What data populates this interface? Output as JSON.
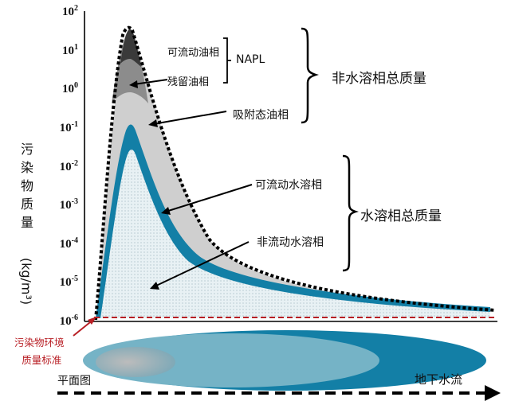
{
  "y_axis": {
    "label_chars": [
      "污",
      "染",
      "物",
      "质",
      "量"
    ],
    "unit": "(kg/m³)",
    "ticks": [
      {
        "base": "10",
        "exp": "2"
      },
      {
        "base": "10",
        "exp": "1"
      },
      {
        "base": "10",
        "exp": "0"
      },
      {
        "base": "10",
        "exp": "-1"
      },
      {
        "base": "10",
        "exp": "-2"
      },
      {
        "base": "10",
        "exp": "-3"
      },
      {
        "base": "10",
        "exp": "-4"
      },
      {
        "base": "10",
        "exp": "-5"
      },
      {
        "base": "10",
        "exp": "-6"
      }
    ]
  },
  "phases": {
    "mobile_napl": "可流动油相",
    "residual_napl": "残留油相",
    "napl": "NAPL",
    "sorbed_napl": "吸附态油相",
    "nonaqueous_total": "非水溶相总质量",
    "mobile_aqueous": "可流动水溶相",
    "immobile_aqueous": "非流动水溶相",
    "aqueous_total": "水溶相总质量"
  },
  "standard_label": {
    "line1": "污染物环境",
    "line2": "质量标准"
  },
  "plan_view_label": "平面图",
  "flow_label": "地下水流",
  "colors": {
    "mobile_napl": "#3a3a3a",
    "residual_napl": "#8c8c8c",
    "sorbed": "#cfcfcf",
    "mobile_aq": "#137fa6",
    "standard": "#b81e24"
  }
}
